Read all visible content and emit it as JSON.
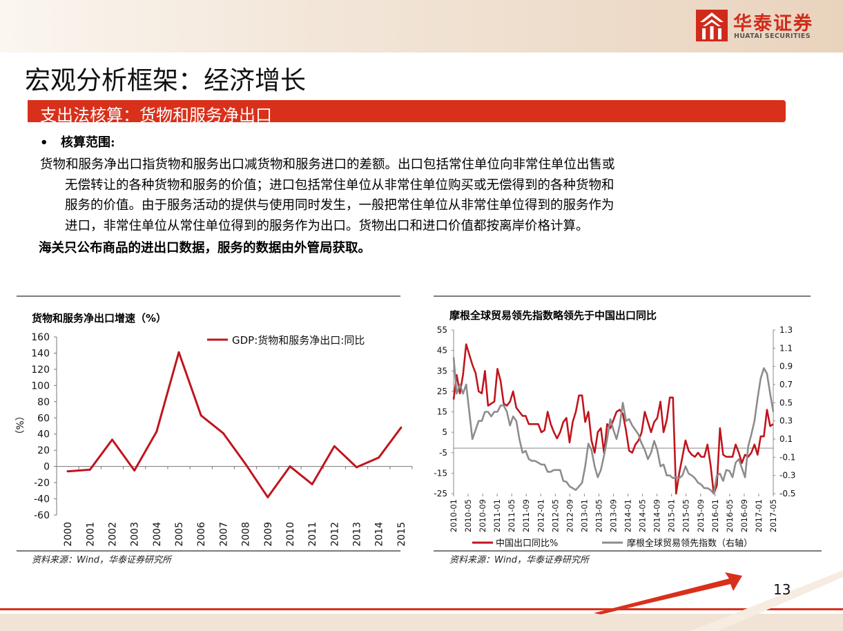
{
  "header": {
    "logo_cn": "华泰证券",
    "logo_en": "HUATAI SECURITIES",
    "brand_color": "#d02b1a"
  },
  "page_title": "宏观分析框架：经济增长",
  "section_title": "支出法核算：货物和服务净出口",
  "bullet_heading": "核算范围:",
  "body_lines": [
    "货物和服务净出口指货物和服务出口减货物和服务进口的差额。出口包括常住单位向非常住单位出售或",
    "无偿转让的各种货物和服务的价值；进口包括常住单位从非常住单位购买或无偿得到的各种货物和",
    "服务的价值。由于服务活动的提供与使用同时发生，一般把常住单位从非常住单位得到的服务作为",
    "进口，非常住单位从常住单位得到的服务作为出口。货物出口和进口价值都按离岸价格计算。"
  ],
  "bold_line": "海关只公布商品的进出口数据，服务的数据由外管局获取。",
  "page_number": "13",
  "chart_data": [
    {
      "type": "line",
      "title": "货物和服务净出口增速（%）",
      "ylabel": "（%）",
      "source": "资料来源：Wind，华泰证券研究所",
      "categories": [
        "2000",
        "2001",
        "2002",
        "2003",
        "2004",
        "2005",
        "2006",
        "2007",
        "2008",
        "2009",
        "2010",
        "2011",
        "2012",
        "2013",
        "2014",
        "2015"
      ],
      "ylim": [
        -60,
        160
      ],
      "yticks": [
        -60,
        -40,
        -20,
        0,
        20,
        40,
        60,
        80,
        100,
        120,
        140,
        160
      ],
      "legend_position": "top-right",
      "series": [
        {
          "name": "GDP:货物和服务净出口:同比",
          "color": "#c0141c",
          "values": [
            -6,
            -4,
            33,
            -5,
            43,
            141,
            63,
            41,
            3,
            -38,
            0,
            -22,
            25,
            -1,
            11,
            48
          ]
        }
      ]
    },
    {
      "type": "line",
      "title": "摩根全球贸易领先指数略领先于中国出口同比",
      "source": "资料来源：Wind，华泰证券研究所",
      "x_tick_labels": [
        "2010-01",
        "2010-05",
        "2010-09",
        "2011-01",
        "2011-05",
        "2011-09",
        "2012-01",
        "2012-05",
        "2012-09",
        "2013-01",
        "2013-05",
        "2013-09",
        "2014-01",
        "2014-05",
        "2014-09",
        "2015-01",
        "2015-05",
        "2015-09",
        "2016-01",
        "2016-05",
        "2016-09",
        "2017-01",
        "2017-05"
      ],
      "y_left_lim": [
        -25,
        55
      ],
      "y_left_ticks": [
        -25,
        -15,
        -5,
        5,
        15,
        25,
        35,
        45,
        55
      ],
      "y_right_lim": [
        -0.5,
        1.3
      ],
      "y_right_ticks": [
        "-0.5",
        "-0.3",
        "-0.1",
        "0.1",
        "0.3",
        "0.5",
        "0.7",
        "0.9",
        "1.1",
        "1.3"
      ],
      "legend_position": "bottom",
      "series": [
        {
          "name": "中国出口同比%",
          "axis": "left",
          "color": "#c0141c",
          "values": [
            21,
            33,
            24,
            33,
            48,
            43,
            38,
            34,
            25,
            24,
            35,
            18,
            19,
            20,
            36,
            30,
            19,
            18,
            20,
            25,
            17,
            15,
            13,
            13,
            9,
            9,
            9,
            9,
            5,
            6,
            15,
            9,
            5,
            2,
            5,
            10,
            12,
            0,
            10,
            15,
            23,
            23,
            10,
            15,
            1,
            -5,
            5,
            7,
            -5,
            9,
            7,
            11,
            15,
            16,
            14,
            6,
            -4,
            -5,
            -1,
            1,
            5,
            15,
            10,
            5,
            10,
            12,
            20,
            5,
            11,
            22,
            22,
            -25,
            -15,
            -7,
            1,
            -4,
            -6,
            -7,
            -5,
            -7,
            -7,
            -1,
            -11,
            -25,
            -21,
            7,
            -6,
            -7,
            -7,
            -7,
            -1,
            -5,
            -10,
            -6,
            -7,
            -5,
            -1,
            -6,
            3,
            3,
            16,
            8,
            9
          ]
        },
        {
          "name": "摩根全球贸易领先指数（右轴）",
          "axis": "right",
          "color": "#8c8c8c",
          "values": [
            1.0,
            0.6,
            0.7,
            0.6,
            0.7,
            0.4,
            0.1,
            0.2,
            0.3,
            0.3,
            0.4,
            0.4,
            0.35,
            0.4,
            0.4,
            0.47,
            0.47,
            0.4,
            0.25,
            0.35,
            0.3,
            0.1,
            -0.05,
            -0.03,
            -0.12,
            -0.14,
            -0.14,
            -0.16,
            -0.18,
            -0.18,
            -0.26,
            -0.26,
            -0.24,
            -0.24,
            -0.24,
            -0.36,
            -0.37,
            -0.42,
            -0.44,
            -0.46,
            -0.42,
            -0.38,
            -0.2,
            0.05,
            -0.02,
            -0.2,
            -0.32,
            -0.24,
            -0.08,
            0.1,
            0.32,
            0.2,
            0.1,
            0.25,
            0.5,
            0.3,
            0.32,
            0.25,
            0.2,
            0.15,
            0.05,
            -0.02,
            -0.12,
            -0.05,
            0.08,
            -0.02,
            -0.2,
            -0.18,
            -0.3,
            -0.3,
            -0.33,
            -0.32,
            -0.33,
            -0.3,
            -0.2,
            -0.28,
            -0.3,
            -0.33,
            -0.38,
            -0.4,
            -0.44,
            -0.44,
            -0.46,
            -0.5,
            -0.3,
            -0.28,
            -0.36,
            -0.24,
            -0.25,
            -0.32,
            -0.16,
            -0.12,
            -0.22,
            -0.32,
            0.02,
            0.15,
            0.3,
            0.55,
            0.77,
            0.88,
            0.82,
            0.6,
            0.4
          ]
        }
      ]
    }
  ]
}
